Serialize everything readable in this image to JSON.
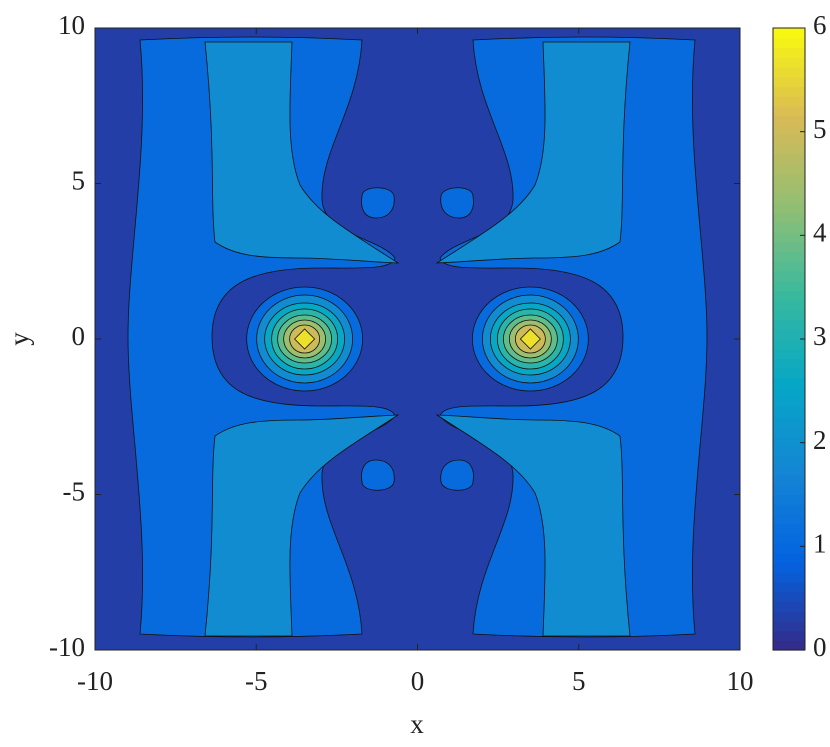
{
  "chart_data": {
    "type": "contour",
    "xlabel": "x",
    "ylabel": "y",
    "xlim": [
      -10,
      10
    ],
    "ylim": [
      -10,
      10
    ],
    "xticks": [
      -10,
      -5,
      0,
      5,
      10
    ],
    "yticks": [
      -10,
      -5,
      0,
      5,
      10
    ],
    "levels": [
      0,
      0.6,
      1.5,
      2.3,
      2.9,
      3.5,
      4.1,
      4.7,
      5.3
    ],
    "colormap": "parula",
    "colorbar": {
      "lim": [
        0,
        6
      ],
      "ticks": [
        0,
        1,
        2,
        3,
        4,
        5,
        6
      ]
    }
  }
}
